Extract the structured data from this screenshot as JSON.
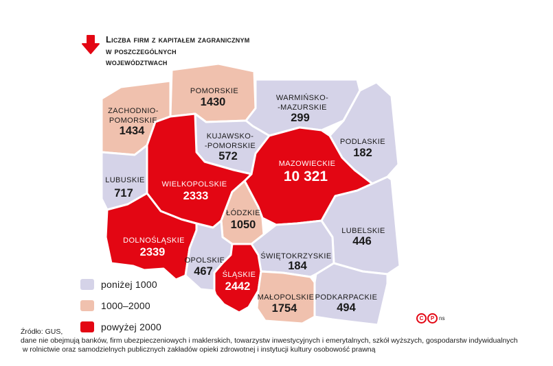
{
  "title": {
    "lines": [
      "Liczba firm z kapitałem zagranicznym",
      "w poszczególnych",
      "województwach"
    ]
  },
  "colors": {
    "low": "#d5d3e8",
    "mid": "#f0c1ae",
    "high": "#e30613",
    "arrow": "#e30613"
  },
  "map": {
    "regions": [
      {
        "id": "pomorskie",
        "name_lines": [
          "POMORSKIE"
        ],
        "value": "1430",
        "category": "mid"
      },
      {
        "id": "warminsko-mazurskie",
        "name_lines": [
          "WARMIŃSKO-",
          "-MAZURSKIE"
        ],
        "value": "299",
        "category": "low"
      },
      {
        "id": "zachodniopomorskie",
        "name_lines": [
          "ZACHODNIO-",
          "POMORSKIE"
        ],
        "value": "1434",
        "category": "mid"
      },
      {
        "id": "kujawsko-pomorskie",
        "name_lines": [
          "KUJAWSKO-",
          "-POMORSKIE"
        ],
        "value": "572",
        "category": "low"
      },
      {
        "id": "podlaskie",
        "name_lines": [
          "PODLASKIE"
        ],
        "value": "182",
        "category": "low"
      },
      {
        "id": "mazowieckie",
        "name_lines": [
          "MAZOWIECKIE"
        ],
        "value": "10 321",
        "category": "high"
      },
      {
        "id": "lubuskie",
        "name_lines": [
          "LUBUSKIE"
        ],
        "value": "717",
        "category": "low"
      },
      {
        "id": "wielkopolskie",
        "name_lines": [
          "WIELKOPOLSKIE"
        ],
        "value": "2333",
        "category": "high"
      },
      {
        "id": "lodzkie",
        "name_lines": [
          "ŁÓDZKIE"
        ],
        "value": "1050",
        "category": "mid"
      },
      {
        "id": "lubelskie",
        "name_lines": [
          "LUBELSKIE"
        ],
        "value": "446",
        "category": "low"
      },
      {
        "id": "dolnoslaskie",
        "name_lines": [
          "DOLNOŚLĄSKIE"
        ],
        "value": "2339",
        "category": "high"
      },
      {
        "id": "opolskie",
        "name_lines": [
          "OPOLSKIE"
        ],
        "value": "467",
        "category": "low"
      },
      {
        "id": "swietokrzyskie",
        "name_lines": [
          "ŚWIĘTOKRZYSKIE"
        ],
        "value": "184",
        "category": "low"
      },
      {
        "id": "slaskie",
        "name_lines": [
          "ŚLĄSKIE"
        ],
        "value": "2442",
        "category": "high"
      },
      {
        "id": "malopolskie",
        "name_lines": [
          "MAŁOPOLSKIE"
        ],
        "value": "1754",
        "category": "mid"
      },
      {
        "id": "podkarpackie",
        "name_lines": [
          "PODKARPACKIE"
        ],
        "value": "494",
        "category": "low"
      }
    ]
  },
  "legend": {
    "items": [
      {
        "label": "poniżej 1000",
        "category": "low"
      },
      {
        "label": "1000–2000",
        "category": "mid"
      },
      {
        "label": "powyżej 2000",
        "category": "high"
      }
    ]
  },
  "source": {
    "lines": [
      "Źródło: GUS,",
      "dane nie obejmują banków, firm ubezpieczeniowych i maklerskich, towarzystw inwestycyjnych i emerytalnych, szkół wyższych, gospodarstw indywidualnych",
      " w rolnictwie oraz samodzielnych publicznych zakładów opieki zdrowotnej i instytucji kultury osobowość prawną"
    ]
  },
  "logo": {
    "mark_c": "C",
    "mark_p": "P",
    "suffix": "ns"
  }
}
